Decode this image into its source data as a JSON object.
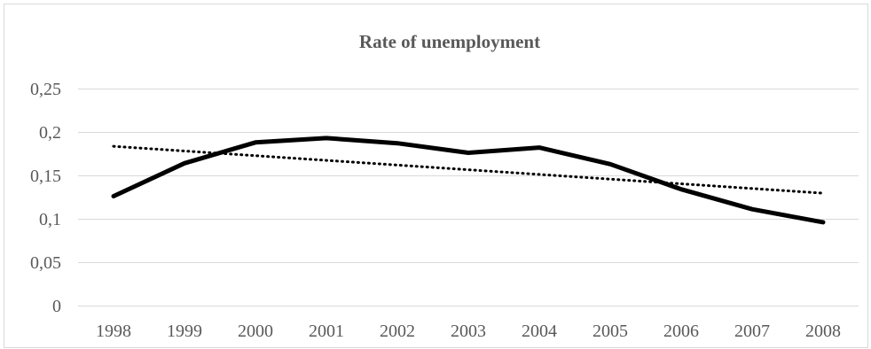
{
  "chart_data": {
    "type": "line",
    "title": "Rate of unemployment",
    "xlabel": "",
    "ylabel": "",
    "categories": [
      "1998",
      "1999",
      "2000",
      "2001",
      "2002",
      "2003",
      "2004",
      "2005",
      "2006",
      "2007",
      "2008"
    ],
    "series": [
      {
        "values": [
          0.126,
          0.164,
          0.188,
          0.193,
          0.187,
          0.176,
          0.182,
          0.163,
          0.134,
          0.111,
          0.096
        ],
        "color": "#000000",
        "style": "solid"
      }
    ],
    "trendline": {
      "kind": "linear",
      "start": 0.1835,
      "end": 0.1295,
      "color": "#000000",
      "style": "dotted"
    },
    "ylim": [
      0,
      0.25
    ],
    "yticks": [
      0,
      0.05,
      0.1,
      0.15,
      0.2,
      0.25
    ],
    "ytick_labels": [
      "0",
      "0,05",
      "0,1",
      "0,15",
      "0,2",
      "0,25"
    ],
    "grid": true,
    "legend": "none"
  }
}
